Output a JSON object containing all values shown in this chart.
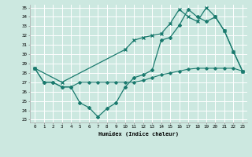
{
  "xlabel": "Humidex (Indice chaleur)",
  "x_ticks": [
    0,
    1,
    2,
    3,
    4,
    5,
    6,
    7,
    8,
    9,
    10,
    11,
    12,
    13,
    14,
    15,
    16,
    17,
    18,
    19,
    20,
    21,
    22,
    23
  ],
  "ylim": [
    23,
    35
  ],
  "xlim": [
    -0.5,
    23.5
  ],
  "yticks": [
    23,
    24,
    25,
    26,
    27,
    28,
    29,
    30,
    31,
    32,
    33,
    34,
    35
  ],
  "bg_color": "#cce8e0",
  "grid_color": "#ffffff",
  "line_color": "#1a7a6e",
  "line1_x": [
    0,
    1,
    2,
    3,
    4,
    5,
    6,
    7,
    8,
    9,
    10,
    11,
    12,
    13,
    14,
    15,
    16,
    17,
    18,
    19,
    20,
    21,
    22,
    23
  ],
  "line1_y": [
    28.5,
    27.0,
    27.0,
    26.5,
    26.5,
    24.8,
    24.3,
    23.3,
    24.2,
    24.8,
    26.5,
    27.5,
    27.8,
    28.3,
    31.5,
    31.8,
    33.1,
    34.8,
    34.0,
    33.5,
    34.0,
    32.5,
    30.3,
    28.2
  ],
  "line2_x": [
    0,
    1,
    2,
    3,
    4,
    5,
    6,
    7,
    8,
    9,
    10,
    11,
    12,
    13,
    14,
    15,
    16,
    17,
    18,
    19,
    20,
    21,
    22,
    23
  ],
  "line2_y": [
    28.5,
    27.0,
    27.0,
    26.5,
    26.5,
    27.0,
    27.0,
    27.0,
    27.0,
    27.0,
    27.0,
    27.0,
    27.2,
    27.5,
    27.8,
    28.0,
    28.2,
    28.4,
    28.5,
    28.5,
    28.5,
    28.5,
    28.5,
    28.2
  ],
  "line3_x": [
    0,
    3,
    10,
    11,
    12,
    13,
    14,
    15,
    16,
    17,
    18,
    19,
    20,
    21,
    22,
    23
  ],
  "line3_y": [
    28.5,
    27.0,
    30.5,
    31.5,
    31.8,
    32.0,
    32.2,
    33.3,
    34.8,
    34.0,
    33.5,
    35.0,
    34.0,
    32.5,
    30.3,
    28.2
  ]
}
